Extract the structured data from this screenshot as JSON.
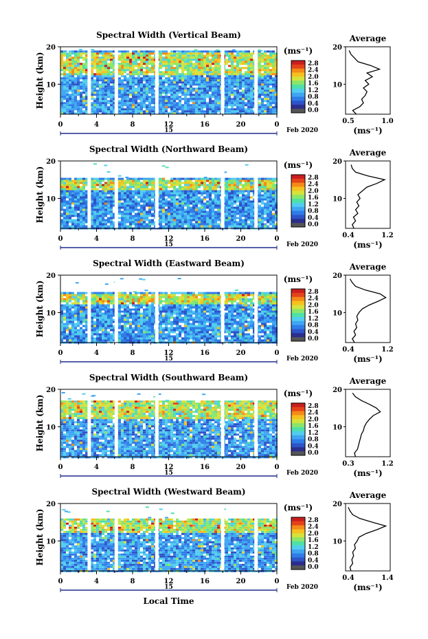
{
  "figure": {
    "xlabel": "Local Time",
    "date_label": "15",
    "month_label": "Feb 2020",
    "ylabel": "Height (km)",
    "cb_unit": "(ms⁻¹)",
    "avg_title": "Average",
    "avg_xlabel": "(ms⁻¹)",
    "x_ticks": [
      "0",
      "4",
      "8",
      "12",
      "16",
      "20",
      "0"
    ],
    "y_ticks": [
      "20",
      "10"
    ],
    "cb_ticks": [
      "2.8",
      "2.4",
      "2.0",
      "1.6",
      "1.2",
      "0.8",
      "0.4",
      "0.0"
    ]
  },
  "colors": {
    "colormap": [
      "#2b2e8c",
      "#2d54c8",
      "#2f7ce8",
      "#3fa5f2",
      "#52cdee",
      "#4fe0a8",
      "#8ae66a",
      "#d6e23c",
      "#f6c020",
      "#f48a18",
      "#e4431a",
      "#c81e1e"
    ],
    "below_min": "#555555",
    "gap": "#ffffff"
  },
  "chart_data": [
    {
      "type": "heatmap",
      "title": "Spectral Width (Vertical Beam)",
      "xlabel": "Local Time",
      "ylabel": "Height (km)",
      "xlim": [
        0,
        24
      ],
      "ylim": [
        2,
        20
      ],
      "colorbar_range": [
        0.0,
        2.8
      ],
      "gaps_hours": [
        3,
        6,
        10.5,
        17.8,
        21.5
      ],
      "top_km": 19.0,
      "avg": {
        "xlim": [
          0.5,
          1.0
        ],
        "xticks": [
          "0.5",
          "1.0"
        ],
        "profile_km": [
          2,
          3,
          4,
          5,
          6,
          7,
          8,
          9,
          10,
          11,
          12,
          13,
          14,
          15,
          16,
          17,
          18,
          19
        ],
        "profile_values": [
          0.62,
          0.58,
          0.66,
          0.7,
          0.68,
          0.72,
          0.74,
          0.7,
          0.76,
          0.72,
          0.8,
          0.74,
          0.88,
          0.78,
          0.64,
          0.6,
          0.56,
          0.54
        ]
      }
    },
    {
      "type": "heatmap",
      "title": "Spectral Width (Northward Beam)",
      "xlabel": "Local Time",
      "ylabel": "Height (km)",
      "xlim": [
        0,
        24
      ],
      "ylim": [
        2,
        20
      ],
      "colorbar_range": [
        0.0,
        2.8
      ],
      "gaps_hours": [
        3,
        6,
        10.5,
        17.8,
        21.5
      ],
      "top_km": 15.5,
      "avg": {
        "xlim": [
          0.4,
          1.2
        ],
        "xticks": [
          "0.4",
          "1.2"
        ],
        "profile_km": [
          2,
          3,
          4,
          5,
          6,
          7,
          8,
          9,
          10,
          11,
          12,
          13,
          14,
          15,
          16,
          17,
          18,
          19
        ],
        "profile_values": [
          0.55,
          0.52,
          0.58,
          0.54,
          0.62,
          0.58,
          0.64,
          0.6,
          0.66,
          0.62,
          0.7,
          0.78,
          0.96,
          1.1,
          0.8,
          0.58,
          0.52,
          0.5
        ]
      }
    },
    {
      "type": "heatmap",
      "title": "Spectral Width (Eastward Beam)",
      "xlabel": "Local Time",
      "ylabel": "Height (km)",
      "xlim": [
        0,
        24
      ],
      "ylim": [
        2,
        20
      ],
      "colorbar_range": [
        0.0,
        2.8
      ],
      "gaps_hours": [
        3,
        6,
        10.5,
        17.8,
        21.5
      ],
      "top_km": 15.5,
      "avg": {
        "xlim": [
          0.4,
          1.2
        ],
        "xticks": [
          "0.4",
          "1.2"
        ],
        "profile_km": [
          2,
          3,
          4,
          5,
          6,
          7,
          8,
          9,
          10,
          11,
          12,
          13,
          14,
          15,
          16,
          17,
          18,
          19
        ],
        "profile_values": [
          0.56,
          0.52,
          0.58,
          0.55,
          0.6,
          0.58,
          0.62,
          0.6,
          0.64,
          0.7,
          0.82,
          0.98,
          1.12,
          1.02,
          0.76,
          0.58,
          0.52,
          0.48
        ]
      }
    },
    {
      "type": "heatmap",
      "title": "Spectral Width (Southward Beam)",
      "xlabel": "Local Time",
      "ylabel": "Height (km)",
      "xlim": [
        0,
        24
      ],
      "ylim": [
        2,
        20
      ],
      "colorbar_range": [
        0.0,
        2.8
      ],
      "gaps_hours": [
        3,
        6,
        10.5,
        17.8,
        21.5
      ],
      "top_km": 17.0,
      "avg": {
        "xlim": [
          0.3,
          1.2
        ],
        "xticks": [
          "0.3",
          "1.2"
        ],
        "profile_km": [
          2,
          3,
          4,
          5,
          6,
          7,
          8,
          9,
          10,
          11,
          12,
          13,
          14,
          15,
          16,
          17,
          18,
          19
        ],
        "profile_values": [
          0.5,
          0.48,
          0.54,
          0.56,
          0.58,
          0.6,
          0.62,
          0.66,
          0.68,
          0.72,
          0.78,
          0.86,
          1.0,
          0.92,
          0.78,
          0.62,
          0.5,
          0.44
        ]
      }
    },
    {
      "type": "heatmap",
      "title": "Spectral Width (Westward Beam)",
      "xlabel": "Local Time",
      "ylabel": "Height (km)",
      "xlim": [
        0,
        24
      ],
      "ylim": [
        2,
        20
      ],
      "colorbar_range": [
        0.0,
        2.8
      ],
      "gaps_hours": [
        3,
        6,
        10.5,
        17.8,
        21.5
      ],
      "top_km": 16.0,
      "avg": {
        "xlim": [
          0.4,
          1.4
        ],
        "xticks": [
          "0.4",
          "1.4"
        ],
        "profile_km": [
          2,
          3,
          4,
          5,
          6,
          7,
          8,
          9,
          10,
          11,
          12,
          13,
          14,
          15,
          16,
          17,
          18,
          19
        ],
        "profile_values": [
          0.52,
          0.5,
          0.56,
          0.54,
          0.58,
          0.56,
          0.62,
          0.6,
          0.66,
          0.7,
          0.86,
          1.1,
          1.3,
          1.0,
          0.72,
          0.56,
          0.5,
          0.46
        ]
      }
    }
  ]
}
